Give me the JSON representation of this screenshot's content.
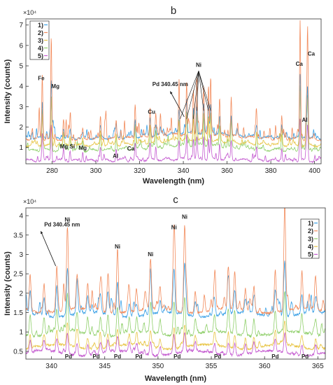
{
  "chart_data": [
    {
      "type": "line",
      "title": "b",
      "exponent_label": "×10⁴",
      "xlabel": "Wavelength (nm)",
      "ylabel": "Intensity (counts)",
      "xlim": [
        268,
        403
      ],
      "ylim": [
        0.2,
        7.3
      ],
      "xticks": [
        280,
        300,
        320,
        340,
        360,
        380,
        400
      ],
      "yticks": [
        1,
        2,
        3,
        4,
        5,
        6,
        7
      ],
      "grid": false,
      "legend_position": "top-left",
      "series": [
        {
          "name": "1)",
          "color": "#3aa0e6",
          "baseline": 1.45,
          "amp": 0.55
        },
        {
          "name": "2)",
          "color": "#f28a5a",
          "baseline": 1.4,
          "amp": 1.0
        },
        {
          "name": "3)",
          "color": "#e8c547",
          "baseline": 1.1,
          "amp": 0.45
        },
        {
          "name": "4)",
          "color": "#8fcf6a",
          "baseline": 0.85,
          "amp": 0.5
        },
        {
          "name": "5)",
          "color": "#c45ad0",
          "baseline": 0.35,
          "amp": 0.3
        }
      ],
      "peaks": [
        {
          "x": 275.5,
          "y": 4.6
        },
        {
          "x": 279.6,
          "y": 6.3
        },
        {
          "x": 285.2,
          "y": 2.4
        },
        {
          "x": 288.2,
          "y": 2.1
        },
        {
          "x": 294.0,
          "y": 1.9
        },
        {
          "x": 302.1,
          "y": 2.5
        },
        {
          "x": 309.3,
          "y": 2.3
        },
        {
          "x": 318.0,
          "y": 3.0
        },
        {
          "x": 324.8,
          "y": 2.9
        },
        {
          "x": 327.4,
          "y": 2.5
        },
        {
          "x": 338.0,
          "y": 3.4
        },
        {
          "x": 341.5,
          "y": 3.9
        },
        {
          "x": 344.6,
          "y": 3.6
        },
        {
          "x": 346.2,
          "y": 3.9
        },
        {
          "x": 349.3,
          "y": 3.7
        },
        {
          "x": 351.5,
          "y": 3.8
        },
        {
          "x": 352.5,
          "y": 4.1
        },
        {
          "x": 356.6,
          "y": 3.0
        },
        {
          "x": 361.9,
          "y": 3.3
        },
        {
          "x": 373.5,
          "y": 2.5
        },
        {
          "x": 385.0,
          "y": 2.5
        },
        {
          "x": 393.4,
          "y": 7.1
        },
        {
          "x": 396.2,
          "y": 2.9
        },
        {
          "x": 396.8,
          "y": 6.2
        }
      ],
      "annotations": [
        {
          "text": "Fe",
          "x": 275,
          "y": 4.3
        },
        {
          "text": "Mg",
          "x": 281.5,
          "y": 3.9
        },
        {
          "text": "Mg Si",
          "x": 287,
          "y": 0.95
        },
        {
          "text": "Mg",
          "x": 294,
          "y": 0.88
        },
        {
          "text": "Al",
          "x": 309,
          "y": 0.5
        },
        {
          "text": "Ca",
          "x": 316,
          "y": 0.85
        },
        {
          "text": "Cu",
          "x": 325.5,
          "y": 2.65
        },
        {
          "text": "Pd 340.45 nm",
          "x": 334,
          "y": 4.0
        },
        {
          "text": "Ni",
          "x": 347,
          "y": 4.95
        },
        {
          "text": "Ca",
          "x": 393,
          "y": 5.0
        },
        {
          "text": "Ca",
          "x": 398.5,
          "y": 5.5
        },
        {
          "text": "Al",
          "x": 395.5,
          "y": 2.25
        }
      ]
    },
    {
      "type": "line",
      "title": "c",
      "exponent_label": "×10⁴",
      "xlabel": "Wavelength (nm)",
      "ylabel": "Intensity (counts)",
      "xlim": [
        337.6,
        365.7
      ],
      "ylim": [
        0.3,
        4.2
      ],
      "xticks": [
        340,
        345,
        350,
        355,
        360,
        365
      ],
      "yticks": [
        0.5,
        1,
        1.5,
        2,
        2.5,
        3,
        3.5,
        4
      ],
      "grid": false,
      "legend_position": "top-right",
      "series": [
        {
          "name": "1)",
          "color": "#3aa0e6",
          "baseline": 1.45,
          "amp": 0.55
        },
        {
          "name": "2)",
          "color": "#f28a5a",
          "baseline": 1.55,
          "amp": 0.75
        },
        {
          "name": "3)",
          "color": "#8fcf6a",
          "baseline": 0.95,
          "amp": 0.35
        },
        {
          "name": "4)",
          "color": "#e8c547",
          "baseline": 0.62,
          "amp": 0.18
        },
        {
          "name": "5)",
          "color": "#c45ad0",
          "baseline": 0.45,
          "amp": 0.15
        }
      ],
      "peaks": [
        {
          "x": 338.0,
          "y": 2.5
        },
        {
          "x": 339.3,
          "y": 2.3
        },
        {
          "x": 340.5,
          "y": 2.7
        },
        {
          "x": 341.5,
          "y": 3.7
        },
        {
          "x": 342.4,
          "y": 2.4
        },
        {
          "x": 343.4,
          "y": 2.2
        },
        {
          "x": 344.6,
          "y": 2.3
        },
        {
          "x": 345.3,
          "y": 2.5
        },
        {
          "x": 346.2,
          "y": 3.05
        },
        {
          "x": 347.3,
          "y": 2.1
        },
        {
          "x": 348.0,
          "y": 2.0
        },
        {
          "x": 349.3,
          "y": 2.85
        },
        {
          "x": 350.2,
          "y": 2.0
        },
        {
          "x": 351.5,
          "y": 3.55
        },
        {
          "x": 352.5,
          "y": 3.8
        },
        {
          "x": 353.5,
          "y": 2.1
        },
        {
          "x": 355.3,
          "y": 2.2
        },
        {
          "x": 356.6,
          "y": 2.65
        },
        {
          "x": 357.2,
          "y": 2.5
        },
        {
          "x": 358.2,
          "y": 2.1
        },
        {
          "x": 359.0,
          "y": 2.2
        },
        {
          "x": 361.0,
          "y": 2.65
        },
        {
          "x": 361.9,
          "y": 3.95
        },
        {
          "x": 363.5,
          "y": 2.3
        },
        {
          "x": 364.8,
          "y": 2.15
        }
      ],
      "annotations": [
        {
          "text": "Pd 340.45 nm",
          "x": 341.0,
          "y": 3.72
        },
        {
          "text": "Ni",
          "x": 341.5,
          "y": 3.85
        },
        {
          "text": "Ni",
          "x": 346.2,
          "y": 3.15
        },
        {
          "text": "Ni",
          "x": 349.3,
          "y": 2.95
        },
        {
          "text": "Ni",
          "x": 351.5,
          "y": 3.65
        },
        {
          "text": "Ni",
          "x": 352.5,
          "y": 3.92
        },
        {
          "text": "Pd",
          "x": 341.6,
          "y": 0.32
        },
        {
          "text": "Pd",
          "x": 344.2,
          "y": 0.32
        },
        {
          "text": "Pd",
          "x": 346.2,
          "y": 0.32
        },
        {
          "text": "Pd",
          "x": 348.2,
          "y": 0.32
        },
        {
          "text": "Pd",
          "x": 351.8,
          "y": 0.32
        },
        {
          "text": "Pd",
          "x": 355.6,
          "y": 0.32
        },
        {
          "text": "Pd",
          "x": 361.0,
          "y": 0.32
        },
        {
          "text": "Pd",
          "x": 363.8,
          "y": 0.32
        }
      ]
    }
  ]
}
